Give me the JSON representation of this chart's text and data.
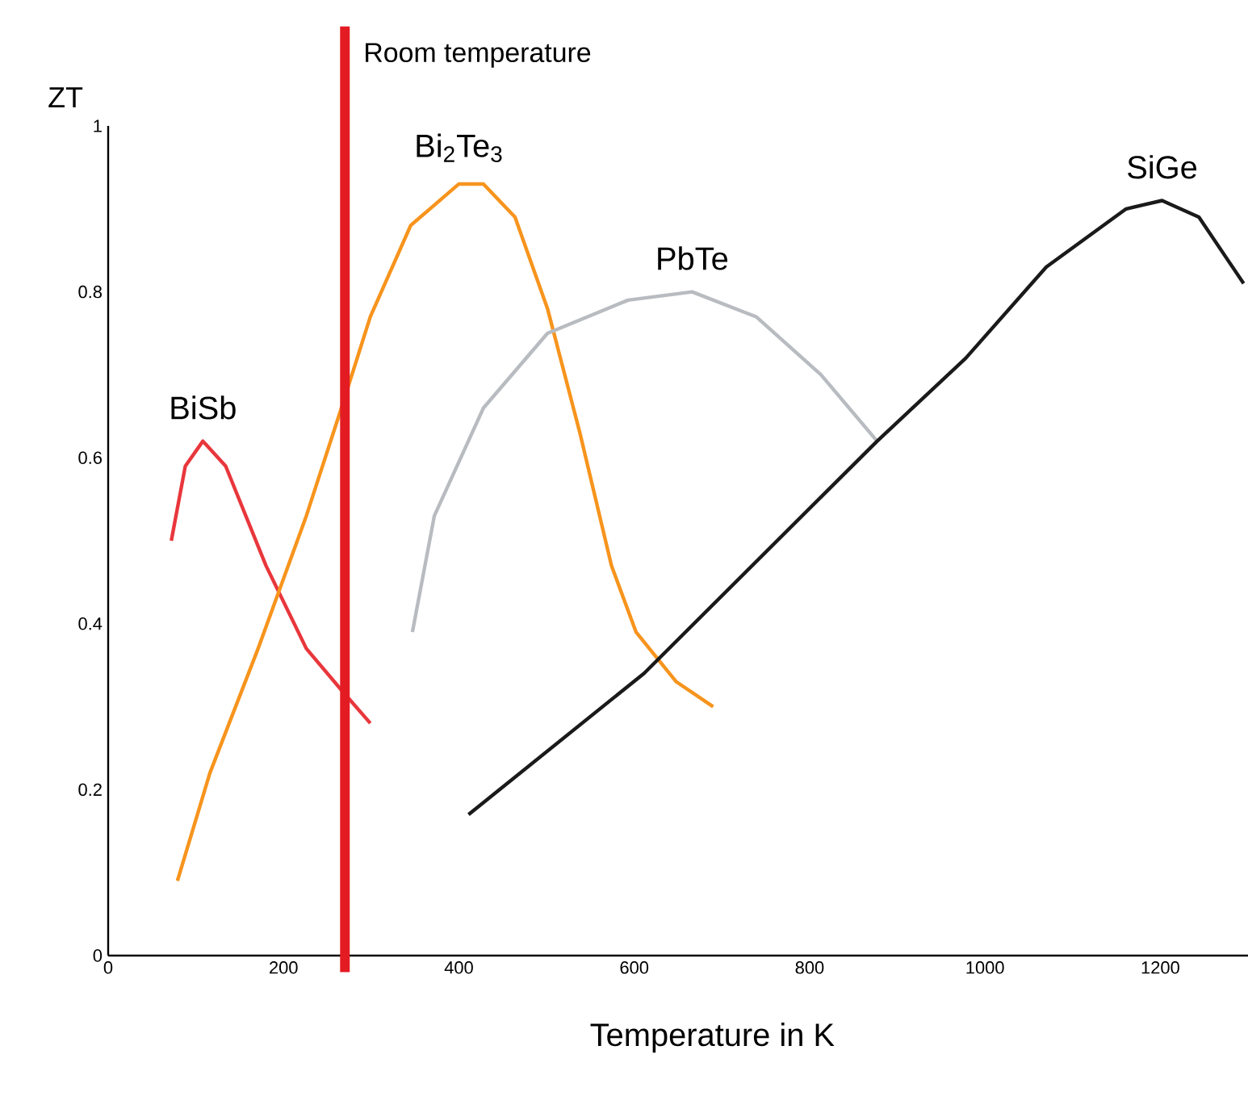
{
  "chart_data": {
    "type": "line",
    "xlabel": "Temperature in K",
    "ylabel": "ZT",
    "xlim": [
      0,
      1300
    ],
    "xticks": [
      0,
      200,
      400,
      600,
      800,
      1000,
      1200
    ],
    "ylim": [
      0,
      1
    ],
    "yticks": [
      0,
      0.2,
      0.4,
      0.6,
      0.8,
      1
    ],
    "grid": false,
    "marker": "none",
    "line_style": "solid",
    "ref_lines": [
      {
        "axis": "x",
        "value": 270,
        "label": "Room temperature",
        "color": "#e31b23"
      }
    ],
    "series": [
      {
        "name": "BiSb",
        "color": "#e8373c",
        "x": [
          72,
          88,
          108,
          134,
          180,
          226,
          266,
          299
        ],
        "values": [
          0.5,
          0.59,
          0.62,
          0.59,
          0.47,
          0.37,
          0.32,
          0.28
        ]
      },
      {
        "name": "Bi$_{2}$Te$_{3}$",
        "color": "#f7941d",
        "x": [
          79,
          116,
          171,
          226,
          266,
          299,
          345,
          400,
          428,
          464,
          501,
          538,
          574,
          602,
          648,
          690
        ],
        "values": [
          0.09,
          0.22,
          0.37,
          0.53,
          0.66,
          0.77,
          0.88,
          0.93,
          0.93,
          0.89,
          0.78,
          0.63,
          0.47,
          0.39,
          0.33,
          0.3
        ]
      },
      {
        "name": "PbTe",
        "color": "#b8bcc0",
        "x": [
          347,
          372,
          428,
          501,
          593,
          666,
          739,
          813,
          877
        ],
        "values": [
          0.39,
          0.53,
          0.66,
          0.75,
          0.79,
          0.8,
          0.77,
          0.7,
          0.62
        ]
      },
      {
        "name": "SiGe",
        "color": "#1a1a1a",
        "x": [
          411,
          611,
          877,
          978,
          1070,
          1161,
          1202,
          1244,
          1295
        ],
        "values": [
          0.17,
          0.34,
          0.62,
          0.72,
          0.83,
          0.9,
          0.91,
          0.89,
          0.81
        ]
      }
    ]
  }
}
